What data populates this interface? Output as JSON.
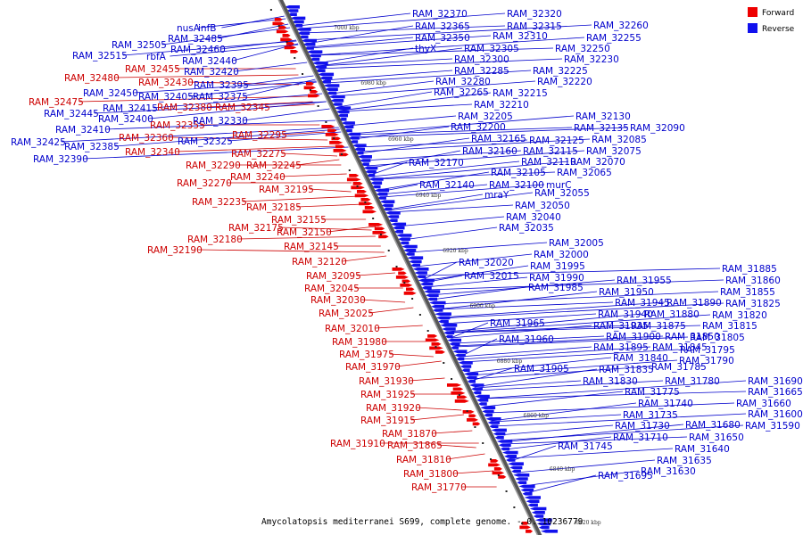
{
  "caption": "Amycolatopsis mediterranei S699, complete genome. - 0..10236779",
  "legend": [
    {
      "name": "Forward",
      "color": "#ee0000"
    },
    {
      "name": "Reverse",
      "color": "#1111ee"
    }
  ],
  "scale_ticks": [
    "7000 kbp",
    "6980 kbp",
    "6960 kbp",
    "6940 kbp",
    "6920 kbp",
    "6900 kbp",
    "6880 kbp",
    "6860 kbp",
    "6840 kbp",
    "6820 kbp"
  ],
  "forward_labels": [
    "RAM_32475",
    "RAM_32480",
    "RAM_32455",
    "RAM_32430",
    "RAM_32380",
    "RAM_32345",
    "RAM_32355",
    "RAM_32360",
    "RAM_32340",
    "RAM_32295",
    "RAM_32290",
    "RAM_32275",
    "RAM_32245",
    "RAM_32240",
    "RAM_32270",
    "RAM_32195",
    "RAM_32235",
    "RAM_32185",
    "RAM_32155",
    "RAM_32175",
    "RAM_32150",
    "RAM_32180",
    "RAM_32145",
    "RAM_32190",
    "RAM_32120",
    "RAM_32095",
    "RAM_32045",
    "RAM_32030",
    "RAM_32025",
    "RAM_32010",
    "RAM_31980",
    "RAM_31975",
    "RAM_31970",
    "RAM_31930",
    "RAM_31925",
    "RAM_31920",
    "RAM_31915",
    "RAM_31870",
    "RAM_31910",
    "RAM_31865",
    "RAM_31810",
    "RAM_31800",
    "RAM_31770"
  ],
  "reverse_labels": [
    "nusA",
    "infB",
    "RAM_32485",
    "RAM_32505",
    "RAM_32460",
    "rbfA",
    "RAM_32515",
    "RAM_32440",
    "RAM_32420",
    "RAM_32450",
    "RAM_32405",
    "RAM_32375",
    "RAM_32395",
    "RAM_32445",
    "RAM_32415",
    "RAM_32400",
    "RAM_32410",
    "RAM_32330",
    "RAM_32425",
    "RAM_32385",
    "RAM_32325",
    "RAM_32390",
    "RAM_32370",
    "RAM_32320",
    "RAM_32365",
    "RAM_32315",
    "RAM_32350",
    "RAM_32310",
    "thyX",
    "RAM_32305",
    "RAM_32300",
    "RAM_32285",
    "RAM_32280",
    "RAM_32265",
    "RAM_32215",
    "RAM_32210",
    "RAM_32205",
    "RAM_32200",
    "RAM_32165",
    "RAM_32160",
    "RAM_32125",
    "RAM_32115",
    "RAM_32170",
    "RAM_32110",
    "RAM_32105",
    "RAM_32140",
    "RAM_32100",
    "murC",
    "mraY",
    "RAM_32055",
    "RAM_32050",
    "RAM_32040",
    "RAM_32035",
    "RAM_32260",
    "RAM_32255",
    "RAM_32250",
    "RAM_32230",
    "RAM_32225",
    "RAM_32220",
    "RAM_32130",
    "RAM_32135",
    "RAM_32090",
    "RAM_32085",
    "RAM_32075",
    "RAM_32070",
    "RAM_32065",
    "RAM_32005",
    "RAM_32000",
    "RAM_31995",
    "RAM_32020",
    "RAM_32015",
    "RAM_31990",
    "RAM_31985",
    "RAM_31955",
    "RAM_31950",
    "RAM_31945",
    "RAM_31940",
    "RAM_31935",
    "RAM_31965",
    "RAM_31960",
    "RAM_31900",
    "RAM_31895",
    "RAM_31905",
    "RAM_31890",
    "RAM_31880",
    "RAM_31875",
    "RAM_31850",
    "RAM_31845",
    "RAM_31840",
    "RAM_31835",
    "RAM_31830",
    "RAM_31780",
    "RAM_31785",
    "RAM_31775",
    "RAM_31740",
    "RAM_31735",
    "RAM_31730",
    "RAM_31710",
    "RAM_31745",
    "RAM_31695",
    "RAM_31885",
    "RAM_31860",
    "RAM_31855",
    "RAM_31825",
    "RAM_31820",
    "RAM_31815",
    "RAM_31805",
    "RAM_31795",
    "RAM_31790",
    "RAM_31690",
    "RAM_31665",
    "RAM_31660",
    "RAM_31600",
    "RAM_31590",
    "RAM_31680",
    "RAM_31650",
    "RAM_31640",
    "RAM_31635",
    "RAM_31630"
  ]
}
